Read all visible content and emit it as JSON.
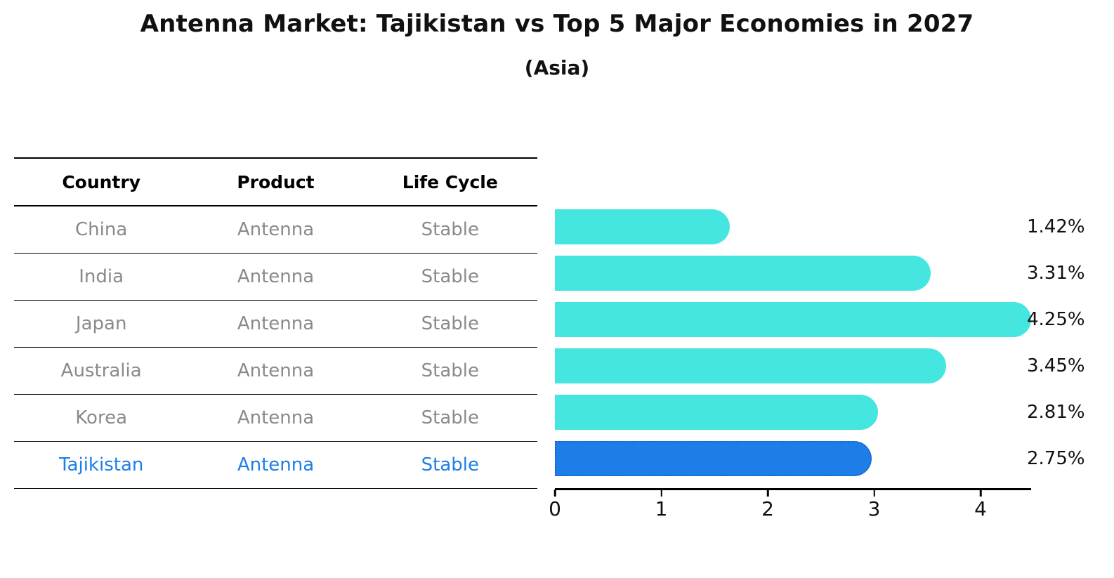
{
  "title": "Antenna Market: Tajikistan vs Top 5 Major Economies in 2027",
  "subtitle": "(Asia)",
  "colors": {
    "bar": "#45e6e0",
    "highlight_bar": "#1e7ee8",
    "highlight_border": "#1563cf",
    "row_text": "#8a8a8a",
    "highlight_text": "#1e7ee8",
    "axis": "#000000"
  },
  "table": {
    "headers": [
      "Country",
      "Product",
      "Life Cycle"
    ],
    "rows": [
      [
        "China",
        "Antenna",
        "Stable"
      ],
      [
        "India",
        "Antenna",
        "Stable"
      ],
      [
        "Japan",
        "Antenna",
        "Stable"
      ],
      [
        "Australia",
        "Antenna",
        "Stable"
      ],
      [
        "Korea",
        "Antenna",
        "Stable"
      ],
      [
        "Tajikistan",
        "Antenna",
        "Stable"
      ]
    ]
  },
  "chart_data": {
    "type": "bar",
    "orientation": "horizontal",
    "title": "Antenna Market: Tajikistan vs Top 5 Major Economies in 2027",
    "subtitle": "(Asia)",
    "categories": [
      "China",
      "India",
      "Japan",
      "Australia",
      "Korea",
      "Tajikistan"
    ],
    "values": [
      1.42,
      3.31,
      4.25,
      3.45,
      2.81,
      2.75
    ],
    "value_labels": [
      "1.42%",
      "3.31%",
      "4.25%",
      "3.45%",
      "2.81%",
      "2.75%"
    ],
    "highlight_category": "Tajikistan",
    "x_ticks": [
      "0",
      "1",
      "2",
      "3",
      "4"
    ],
    "xlim": [
      0,
      4.5
    ],
    "grid": false,
    "legend": false
  }
}
